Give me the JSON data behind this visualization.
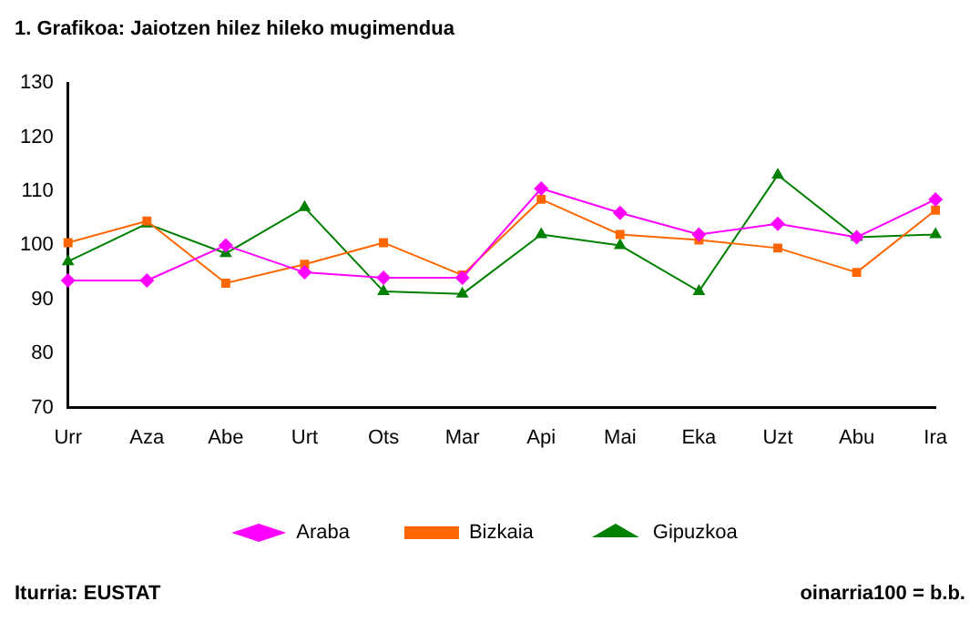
{
  "chart_data": {
    "type": "line",
    "title": "1. Grafikoa: Jaiotzen hilez hileko mugimendua",
    "categories": [
      "Urr",
      "Aza",
      "Abe",
      "Urt",
      "Ots",
      "Mar",
      "Api",
      "Mai",
      "Eka",
      "Uzt",
      "Abu",
      "Ira"
    ],
    "series": [
      {
        "name": "Araba",
        "color": "#ff00ff",
        "marker": "diamond",
        "values": [
          93.5,
          93.5,
          100,
          95,
          94,
          94,
          110.5,
          106,
          102,
          104,
          101.5,
          108.5
        ]
      },
      {
        "name": "Bizkaia",
        "color": "#ff6600",
        "marker": "square",
        "values": [
          100.5,
          104.5,
          93,
          96.5,
          100.5,
          94.5,
          108.5,
          102,
          101,
          99.5,
          95,
          106.5
        ]
      },
      {
        "name": "Gipuzkoa",
        "color": "#008000",
        "marker": "triangle",
        "values": [
          97,
          104,
          98.5,
          107,
          91.5,
          91,
          102,
          100,
          91.5,
          113,
          101.5,
          102
        ]
      }
    ],
    "ylim": [
      70,
      130
    ],
    "yticks": [
      70,
      80,
      90,
      100,
      110,
      120,
      130
    ],
    "grid": false,
    "legend": "bottom",
    "annotations": [
      "Iturria: EUSTAT",
      "oinarria100 = b.b."
    ]
  }
}
